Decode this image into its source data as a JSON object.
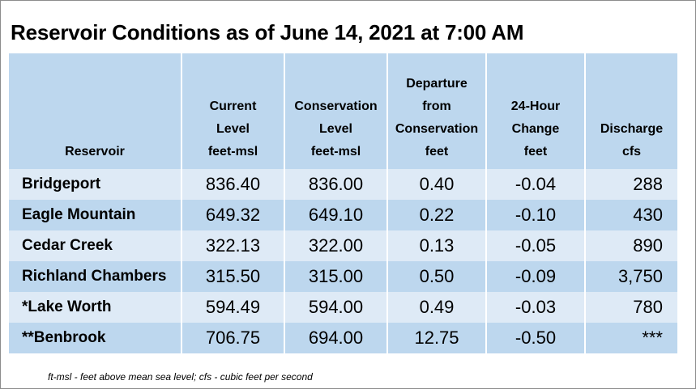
{
  "title": "Reservoir Conditions as of June 14, 2021 at 7:00 AM",
  "header": {
    "reservoir": "Reservoir",
    "current_level": [
      "Current",
      "Level",
      "feet-msl"
    ],
    "conservation_level": [
      "Conservation",
      "Level",
      "feet-msl"
    ],
    "departure": [
      "Departure",
      "from",
      "Conservation",
      "feet"
    ],
    "change_24h": [
      "24-Hour",
      "Change",
      "feet"
    ],
    "discharge": [
      "Discharge",
      "cfs"
    ]
  },
  "rows": [
    {
      "name": "Bridgeport",
      "current": "836.40",
      "conservation": "836.00",
      "departure": "0.40",
      "change": "-0.04",
      "discharge": "288"
    },
    {
      "name": "Eagle Mountain",
      "current": "649.32",
      "conservation": "649.10",
      "departure": "0.22",
      "change": "-0.10",
      "discharge": "430"
    },
    {
      "name": "Cedar Creek",
      "current": "322.13",
      "conservation": "322.00",
      "departure": "0.13",
      "change": "-0.05",
      "discharge": "890"
    },
    {
      "name": "Richland Chambers",
      "current": "315.50",
      "conservation": "315.00",
      "departure": "0.50",
      "change": "-0.09",
      "discharge": "3,750"
    },
    {
      "name": "*Lake Worth",
      "current": "594.49",
      "conservation": "594.00",
      "departure": "0.49",
      "change": "-0.03",
      "discharge": "780"
    },
    {
      "name": "**Benbrook",
      "current": "706.75",
      "conservation": "694.00",
      "departure": "12.75",
      "change": "-0.50",
      "discharge": "***"
    }
  ],
  "footnote": "ft-msl - feet above mean sea level; cfs - cubic feet per second",
  "colors": {
    "header_fill": "#bdd7ee",
    "row_light": "#deeaf6",
    "row_dark": "#bdd7ee"
  }
}
